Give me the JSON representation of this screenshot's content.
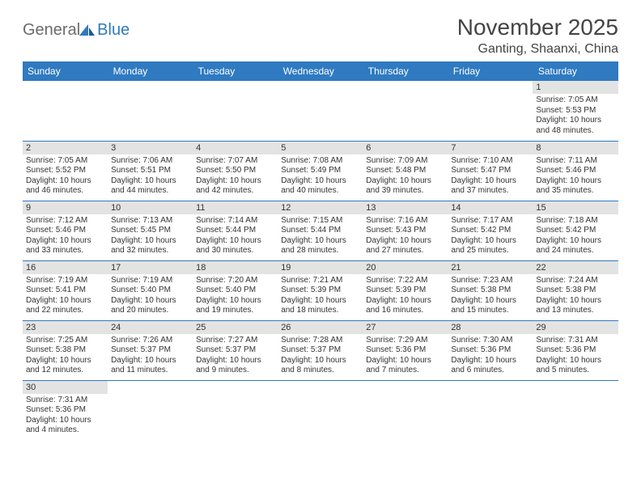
{
  "logo": {
    "text1": "General",
    "text2": "Blue"
  },
  "title": "November 2025",
  "location": "Ganting, Shaanxi, China",
  "weekdays": [
    "Sunday",
    "Monday",
    "Tuesday",
    "Wednesday",
    "Thursday",
    "Friday",
    "Saturday"
  ],
  "colors": {
    "header_bg": "#2f7ac0",
    "header_text": "#ffffff",
    "daynum_bg": "#e3e3e3",
    "row_border": "#2f7ac0",
    "page_bg": "#ffffff"
  },
  "labels": {
    "sunrise": "Sunrise:",
    "sunset": "Sunset:",
    "daylight": "Daylight:"
  },
  "rows": [
    [
      null,
      null,
      null,
      null,
      null,
      null,
      {
        "n": "1",
        "sr": "7:05 AM",
        "ss": "5:53 PM",
        "dl": "10 hours and 48 minutes."
      }
    ],
    [
      {
        "n": "2",
        "sr": "7:05 AM",
        "ss": "5:52 PM",
        "dl": "10 hours and 46 minutes."
      },
      {
        "n": "3",
        "sr": "7:06 AM",
        "ss": "5:51 PM",
        "dl": "10 hours and 44 minutes."
      },
      {
        "n": "4",
        "sr": "7:07 AM",
        "ss": "5:50 PM",
        "dl": "10 hours and 42 minutes."
      },
      {
        "n": "5",
        "sr": "7:08 AM",
        "ss": "5:49 PM",
        "dl": "10 hours and 40 minutes."
      },
      {
        "n": "6",
        "sr": "7:09 AM",
        "ss": "5:48 PM",
        "dl": "10 hours and 39 minutes."
      },
      {
        "n": "7",
        "sr": "7:10 AM",
        "ss": "5:47 PM",
        "dl": "10 hours and 37 minutes."
      },
      {
        "n": "8",
        "sr": "7:11 AM",
        "ss": "5:46 PM",
        "dl": "10 hours and 35 minutes."
      }
    ],
    [
      {
        "n": "9",
        "sr": "7:12 AM",
        "ss": "5:46 PM",
        "dl": "10 hours and 33 minutes."
      },
      {
        "n": "10",
        "sr": "7:13 AM",
        "ss": "5:45 PM",
        "dl": "10 hours and 32 minutes."
      },
      {
        "n": "11",
        "sr": "7:14 AM",
        "ss": "5:44 PM",
        "dl": "10 hours and 30 minutes."
      },
      {
        "n": "12",
        "sr": "7:15 AM",
        "ss": "5:44 PM",
        "dl": "10 hours and 28 minutes."
      },
      {
        "n": "13",
        "sr": "7:16 AM",
        "ss": "5:43 PM",
        "dl": "10 hours and 27 minutes."
      },
      {
        "n": "14",
        "sr": "7:17 AM",
        "ss": "5:42 PM",
        "dl": "10 hours and 25 minutes."
      },
      {
        "n": "15",
        "sr": "7:18 AM",
        "ss": "5:42 PM",
        "dl": "10 hours and 24 minutes."
      }
    ],
    [
      {
        "n": "16",
        "sr": "7:19 AM",
        "ss": "5:41 PM",
        "dl": "10 hours and 22 minutes."
      },
      {
        "n": "17",
        "sr": "7:19 AM",
        "ss": "5:40 PM",
        "dl": "10 hours and 20 minutes."
      },
      {
        "n": "18",
        "sr": "7:20 AM",
        "ss": "5:40 PM",
        "dl": "10 hours and 19 minutes."
      },
      {
        "n": "19",
        "sr": "7:21 AM",
        "ss": "5:39 PM",
        "dl": "10 hours and 18 minutes."
      },
      {
        "n": "20",
        "sr": "7:22 AM",
        "ss": "5:39 PM",
        "dl": "10 hours and 16 minutes."
      },
      {
        "n": "21",
        "sr": "7:23 AM",
        "ss": "5:38 PM",
        "dl": "10 hours and 15 minutes."
      },
      {
        "n": "22",
        "sr": "7:24 AM",
        "ss": "5:38 PM",
        "dl": "10 hours and 13 minutes."
      }
    ],
    [
      {
        "n": "23",
        "sr": "7:25 AM",
        "ss": "5:38 PM",
        "dl": "10 hours and 12 minutes."
      },
      {
        "n": "24",
        "sr": "7:26 AM",
        "ss": "5:37 PM",
        "dl": "10 hours and 11 minutes."
      },
      {
        "n": "25",
        "sr": "7:27 AM",
        "ss": "5:37 PM",
        "dl": "10 hours and 9 minutes."
      },
      {
        "n": "26",
        "sr": "7:28 AM",
        "ss": "5:37 PM",
        "dl": "10 hours and 8 minutes."
      },
      {
        "n": "27",
        "sr": "7:29 AM",
        "ss": "5:36 PM",
        "dl": "10 hours and 7 minutes."
      },
      {
        "n": "28",
        "sr": "7:30 AM",
        "ss": "5:36 PM",
        "dl": "10 hours and 6 minutes."
      },
      {
        "n": "29",
        "sr": "7:31 AM",
        "ss": "5:36 PM",
        "dl": "10 hours and 5 minutes."
      }
    ],
    [
      {
        "n": "30",
        "sr": "7:31 AM",
        "ss": "5:36 PM",
        "dl": "10 hours and 4 minutes."
      },
      null,
      null,
      null,
      null,
      null,
      null
    ]
  ]
}
